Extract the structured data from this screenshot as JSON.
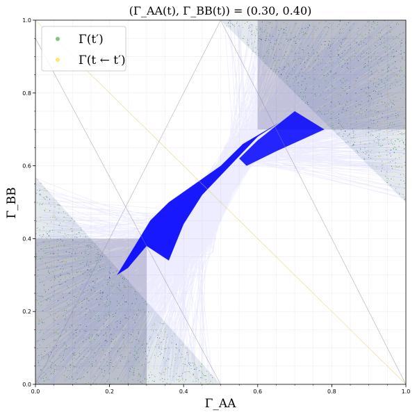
{
  "chart_data": {
    "type": "scatter",
    "title": "(Γ_AA(t), Γ_BB(t)) = (0.30, 0.40)",
    "xlabel": "Γ_AA",
    "ylabel": "Γ_BB",
    "xlim": [
      0.0,
      1.0
    ],
    "ylim": [
      0.0,
      1.0
    ],
    "xticks": [
      0.0,
      0.2,
      0.4,
      0.6,
      0.8,
      1.0
    ],
    "yticks": [
      0.0,
      0.2,
      0.4,
      0.6,
      0.8,
      1.0
    ],
    "xtick_labels": [
      "0.0",
      "0.2",
      "0.4",
      "0.6",
      "0.8",
      "1.0"
    ],
    "ytick_labels": [
      "0.0",
      "0.2",
      "0.4",
      "0.6",
      "0.8",
      "1.0"
    ],
    "grid": true,
    "legend_position": "top-left",
    "current_point": [
      0.3,
      0.4
    ],
    "series": [
      {
        "name": "Γ(t′)",
        "color": "#2ca02c",
        "marker": "point"
      },
      {
        "name": "Γ(t ← t′)",
        "color": "#ffd700",
        "marker": "point"
      }
    ],
    "transition_color": "#0000ff",
    "regions": {
      "low_box": {
        "x": [
          0.0,
          0.3
        ],
        "y": [
          0.0,
          0.4
        ]
      },
      "high_box": {
        "x": [
          0.6,
          1.0
        ],
        "y": [
          0.7,
          1.0
        ]
      },
      "lower_left_triangle": [
        [
          0.0,
          0.0
        ],
        [
          0.0,
          0.57
        ],
        [
          0.5,
          0.0
        ]
      ],
      "upper_right_triangle": [
        [
          0.5,
          1.0
        ],
        [
          1.0,
          1.0
        ],
        [
          1.0,
          0.5
        ]
      ]
    },
    "guide_lines": [
      [
        [
          0.0,
          1.0
        ],
        [
          1.0,
          0.0
        ]
      ],
      [
        [
          0.0,
          0.95
        ],
        [
          0.5,
          0.0
        ]
      ],
      [
        [
          0.5,
          1.0
        ],
        [
          1.0,
          0.0
        ]
      ],
      [
        [
          0.0,
          0.0
        ],
        [
          0.5,
          1.0
        ]
      ]
    ]
  }
}
